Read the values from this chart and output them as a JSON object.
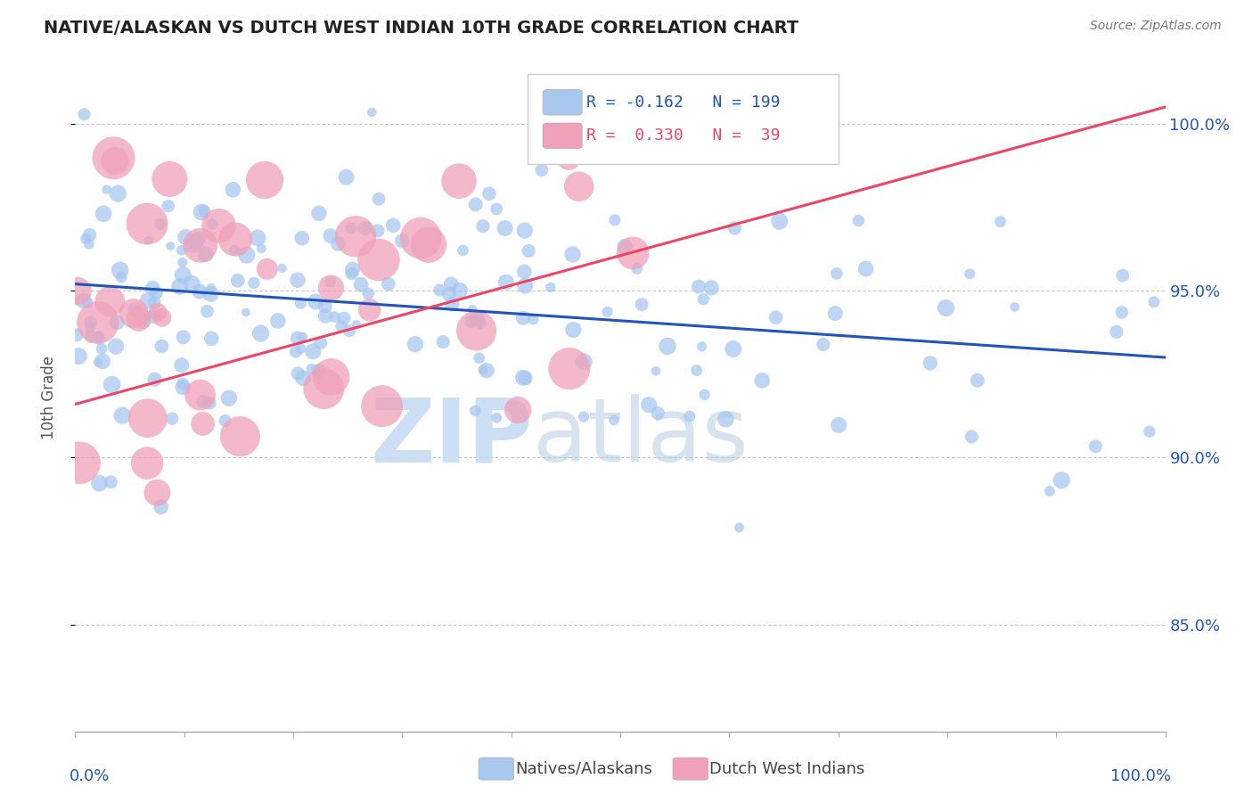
{
  "title": "NATIVE/ALASKAN VS DUTCH WEST INDIAN 10TH GRADE CORRELATION CHART",
  "source": "Source: ZipAtlas.com",
  "ylabel": "10th Grade",
  "ytick_labels": [
    "85.0%",
    "90.0%",
    "95.0%",
    "100.0%"
  ],
  "ytick_values": [
    0.85,
    0.9,
    0.95,
    1.0
  ],
  "xlim": [
    0.0,
    1.0
  ],
  "ylim": [
    0.818,
    1.018
  ],
  "blue_color": "#A8C8F0",
  "pink_color": "#F0A0B8",
  "blue_line_color": "#2255BB",
  "pink_line_color": "#EE4466",
  "blue_r": -0.162,
  "blue_n": 199,
  "pink_r": 0.33,
  "pink_n": 39,
  "blue_line_start_y": 0.952,
  "blue_line_end_y": 0.93,
  "pink_line_start_y": 0.916,
  "pink_line_end_y": 1.005
}
